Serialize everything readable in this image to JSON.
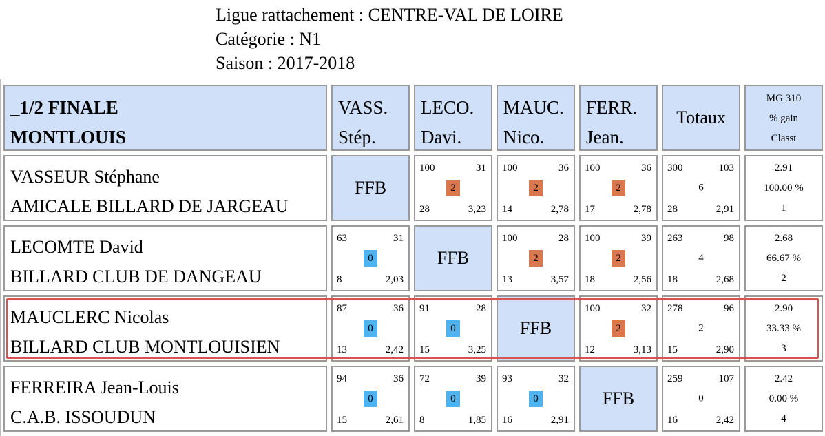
{
  "header": {
    "ligue": "Ligue rattachement : CENTRE-VAL DE LOIRE",
    "categorie": "Catégorie : N1",
    "saison": "Saison : 2017-2018"
  },
  "colors": {
    "header_bg": "#cfe0f8",
    "win_badge": "#d9774e",
    "loss_badge": "#4fb3f0",
    "highlight": "#d9534f"
  },
  "table": {
    "corner": {
      "line1": "_1/2 FINALE",
      "line2": "MONTLOUIS"
    },
    "columns": [
      {
        "line1": "VASS.",
        "line2": "Stép."
      },
      {
        "line1": "LECO.",
        "line2": "Davi."
      },
      {
        "line1": "MAUC.",
        "line2": "Nico."
      },
      {
        "line1": "FERR.",
        "line2": "Jean."
      }
    ],
    "totals_header": "Totaux",
    "mg_header": {
      "line1": "MG 310",
      "line2": "% gain",
      "line3": "Classt"
    },
    "ffb": "FFB",
    "rows": [
      {
        "name": "VASSEUR Stéphane",
        "club": "AMICALE BILLARD DE JARGEAU",
        "cells": [
          null,
          {
            "tl": "100",
            "tr": "31",
            "badge": "2",
            "bl": "28",
            "br": "3,23"
          },
          {
            "tl": "100",
            "tr": "36",
            "badge": "2",
            "bl": "14",
            "br": "2,78"
          },
          {
            "tl": "100",
            "tr": "36",
            "badge": "2",
            "bl": "17",
            "br": "2,78"
          }
        ],
        "totals": {
          "tl": "300",
          "tr": "103",
          "mid": "6",
          "bl": "28",
          "br": "2,91"
        },
        "summary": {
          "mg": "2.91",
          "pct": "100.00 %",
          "rank": "1"
        }
      },
      {
        "name": "LECOMTE David",
        "club": "BILLARD CLUB DE DANGEAU",
        "cells": [
          {
            "tl": "63",
            "tr": "31",
            "badge": "0",
            "bl": "8",
            "br": "2,03"
          },
          null,
          {
            "tl": "100",
            "tr": "28",
            "badge": "2",
            "bl": "13",
            "br": "3,57"
          },
          {
            "tl": "100",
            "tr": "39",
            "badge": "2",
            "bl": "18",
            "br": "2,56"
          }
        ],
        "totals": {
          "tl": "263",
          "tr": "98",
          "mid": "4",
          "bl": "18",
          "br": "2,68"
        },
        "summary": {
          "mg": "2.68",
          "pct": "66.67 %",
          "rank": "2"
        }
      },
      {
        "name": "MAUCLERC Nicolas",
        "club": "BILLARD CLUB MONTLOUISIEN",
        "cells": [
          {
            "tl": "87",
            "tr": "36",
            "badge": "0",
            "bl": "13",
            "br": "2,42"
          },
          {
            "tl": "91",
            "tr": "28",
            "badge": "0",
            "bl": "15",
            "br": "3,25"
          },
          null,
          {
            "tl": "100",
            "tr": "32",
            "badge": "2",
            "bl": "12",
            "br": "3,13"
          }
        ],
        "totals": {
          "tl": "278",
          "tr": "96",
          "mid": "2",
          "bl": "15",
          "br": "2,90"
        },
        "summary": {
          "mg": "2.90",
          "pct": "33.33 %",
          "rank": "3"
        }
      },
      {
        "name": "FERREIRA Jean-Louis",
        "club": "C.A.B. ISSOUDUN",
        "cells": [
          {
            "tl": "94",
            "tr": "36",
            "badge": "0",
            "bl": "15",
            "br": "2,61"
          },
          {
            "tl": "72",
            "tr": "39",
            "badge": "0",
            "bl": "8",
            "br": "1,85"
          },
          {
            "tl": "93",
            "tr": "32",
            "badge": "0",
            "bl": "16",
            "br": "2,91"
          },
          null
        ],
        "totals": {
          "tl": "259",
          "tr": "107",
          "mid": "0",
          "bl": "16",
          "br": "2,42"
        },
        "summary": {
          "mg": "2.42",
          "pct": "0.00 %",
          "rank": "4"
        }
      }
    ]
  }
}
